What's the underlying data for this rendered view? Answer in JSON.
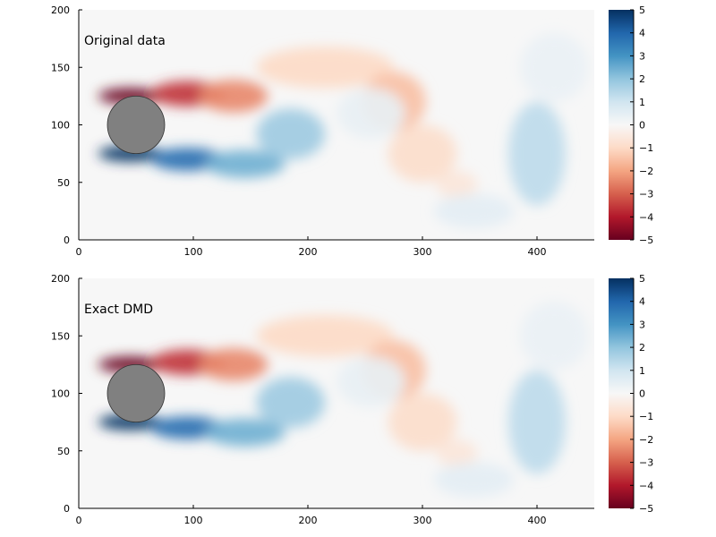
{
  "chart_data": [
    {
      "type": "heatmap",
      "annotation": "Original data",
      "xlim": [
        0,
        450
      ],
      "ylim": [
        0,
        200
      ],
      "xticks": [
        0,
        100,
        200,
        300,
        400
      ],
      "yticks": [
        0,
        50,
        100,
        150,
        200
      ],
      "colorbar": {
        "range": [
          -5,
          5
        ],
        "ticks": [
          5,
          4,
          3,
          2,
          1,
          0,
          -1,
          -2,
          -3,
          -4,
          -5
        ],
        "colormap": "RdBu"
      },
      "cylinder": {
        "center": [
          50,
          100
        ],
        "radius": 25,
        "color": "#808080"
      },
      "field_model": [
        {
          "x": 45,
          "y": 125,
          "rx": 28,
          "ry": 7,
          "value": -5
        },
        {
          "x": 95,
          "y": 127,
          "rx": 32,
          "ry": 11,
          "value": -3.6
        },
        {
          "x": 135,
          "y": 125,
          "rx": 30,
          "ry": 14,
          "value": -2.4
        },
        {
          "x": 215,
          "y": 150,
          "rx": 60,
          "ry": 18,
          "value": -1.0
        },
        {
          "x": 275,
          "y": 120,
          "rx": 28,
          "ry": 26,
          "value": -1.5
        },
        {
          "x": 300,
          "y": 75,
          "rx": 30,
          "ry": 25,
          "value": -0.9
        },
        {
          "x": 330,
          "y": 48,
          "rx": 18,
          "ry": 12,
          "value": -0.6
        },
        {
          "x": 45,
          "y": 75,
          "rx": 28,
          "ry": 7,
          "value": 5
        },
        {
          "x": 95,
          "y": 70,
          "rx": 32,
          "ry": 10,
          "value": 3.8
        },
        {
          "x": 145,
          "y": 66,
          "rx": 35,
          "ry": 12,
          "value": 2.4
        },
        {
          "x": 185,
          "y": 92,
          "rx": 30,
          "ry": 22,
          "value": 1.8
        },
        {
          "x": 255,
          "y": 110,
          "rx": 30,
          "ry": 22,
          "value": 0.4
        },
        {
          "x": 345,
          "y": 25,
          "rx": 35,
          "ry": 15,
          "value": 0.5
        },
        {
          "x": 400,
          "y": 75,
          "rx": 25,
          "ry": 45,
          "value": 1.3
        },
        {
          "x": 415,
          "y": 150,
          "rx": 30,
          "ry": 30,
          "value": 0.35
        }
      ]
    },
    {
      "type": "heatmap",
      "annotation": "Exact DMD",
      "xlim": [
        0,
        450
      ],
      "ylim": [
        0,
        200
      ],
      "xticks": [
        0,
        100,
        200,
        300,
        400
      ],
      "yticks": [
        0,
        50,
        100,
        150,
        200
      ],
      "colorbar": {
        "range": [
          -5,
          5
        ],
        "ticks": [
          5,
          4,
          3,
          2,
          1,
          0,
          -1,
          -2,
          -3,
          -4,
          -5
        ],
        "colormap": "RdBu"
      },
      "cylinder": {
        "center": [
          50,
          100
        ],
        "radius": 25,
        "color": "#808080"
      },
      "field_model": [
        {
          "x": 45,
          "y": 125,
          "rx": 28,
          "ry": 7,
          "value": -5
        },
        {
          "x": 95,
          "y": 127,
          "rx": 32,
          "ry": 11,
          "value": -3.6
        },
        {
          "x": 135,
          "y": 125,
          "rx": 30,
          "ry": 14,
          "value": -2.4
        },
        {
          "x": 215,
          "y": 150,
          "rx": 60,
          "ry": 18,
          "value": -1.0
        },
        {
          "x": 275,
          "y": 120,
          "rx": 28,
          "ry": 26,
          "value": -1.5
        },
        {
          "x": 300,
          "y": 75,
          "rx": 30,
          "ry": 25,
          "value": -0.9
        },
        {
          "x": 330,
          "y": 48,
          "rx": 18,
          "ry": 12,
          "value": -0.6
        },
        {
          "x": 45,
          "y": 75,
          "rx": 28,
          "ry": 7,
          "value": 5
        },
        {
          "x": 95,
          "y": 70,
          "rx": 32,
          "ry": 10,
          "value": 3.8
        },
        {
          "x": 145,
          "y": 66,
          "rx": 35,
          "ry": 12,
          "value": 2.4
        },
        {
          "x": 185,
          "y": 92,
          "rx": 30,
          "ry": 22,
          "value": 1.8
        },
        {
          "x": 255,
          "y": 110,
          "rx": 30,
          "ry": 22,
          "value": 0.4
        },
        {
          "x": 345,
          "y": 25,
          "rx": 35,
          "ry": 15,
          "value": 0.5
        },
        {
          "x": 400,
          "y": 75,
          "rx": 25,
          "ry": 45,
          "value": 1.3
        },
        {
          "x": 415,
          "y": 150,
          "rx": 30,
          "ry": 30,
          "value": 0.35
        }
      ]
    }
  ]
}
